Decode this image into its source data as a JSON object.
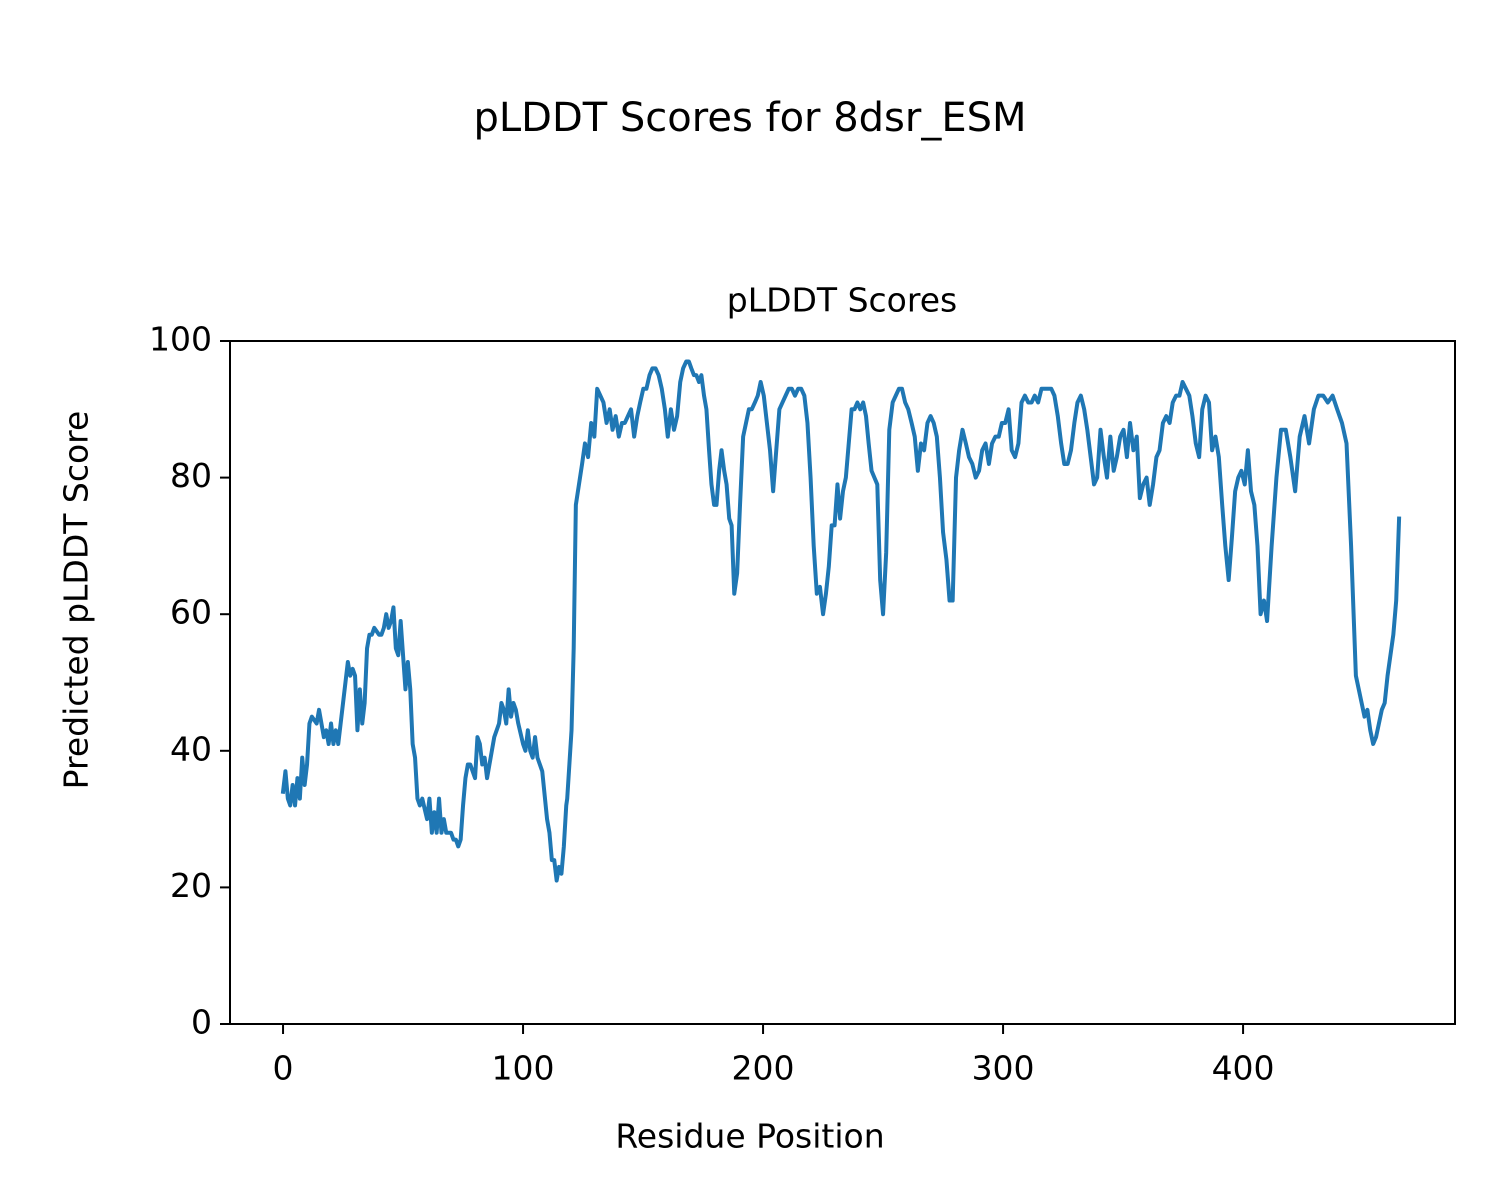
{
  "chart_data": {
    "type": "line",
    "title": "pLDDT Scores for 8dsr_ESM",
    "subtitle": "pLDDT Scores",
    "x_label": "Residue Position",
    "y_label": "Predicted pLDDT Score",
    "color": "#1f77b4",
    "xlim": [
      -22.1,
      488.3
    ],
    "ylim": [
      0,
      100
    ],
    "xticks": [
      0,
      100,
      200,
      300,
      400
    ],
    "yticks": [
      0,
      20,
      40,
      60,
      80,
      100
    ],
    "grid": false,
    "x": [
      0,
      1,
      2,
      3,
      4,
      5,
      6,
      7,
      8,
      9,
      10,
      11,
      12,
      14,
      15,
      16,
      17,
      18,
      19,
      20,
      21,
      22,
      23,
      24,
      25,
      26,
      27,
      28,
      29,
      30,
      31,
      32,
      33,
      34,
      35,
      36,
      37,
      38,
      40,
      41,
      42,
      43,
      44,
      45,
      46,
      47,
      48,
      49,
      50,
      51,
      52,
      53,
      54,
      55,
      56,
      57,
      58,
      60,
      61,
      62,
      63,
      64,
      65,
      66,
      67,
      68,
      70,
      71,
      72,
      73,
      74,
      75,
      76,
      77,
      78,
      80,
      81,
      82,
      83,
      84,
      85,
      86,
      87,
      88,
      90,
      91,
      92,
      93,
      94,
      95,
      96,
      97,
      98,
      100,
      101,
      102,
      103,
      104,
      105,
      106,
      107,
      108,
      110,
      111,
      112,
      113,
      114,
      115,
      116,
      117,
      118,
      118.4,
      119.3,
      120.2,
      121.1,
      122,
      123.3,
      124.6,
      125.8,
      127.1,
      128.4,
      129.7,
      130.9,
      132.2,
      133.5,
      134.8,
      136.1,
      137.3,
      138.6,
      139.9,
      141.2,
      142.4,
      143.7,
      145,
      146.3,
      147.6,
      148.8,
      150.1,
      151.4,
      152.7,
      153.9,
      155.2,
      156.5,
      157.8,
      159.1,
      160.3,
      161.6,
      162.9,
      164.2,
      165.5,
      166.7,
      168,
      169.1,
      170.1,
      171.2,
      172.2,
      173.3,
      174.3,
      175.4,
      176.4,
      177.5,
      178.5,
      179.6,
      180.6,
      181.7,
      182.7,
      183.8,
      184.8,
      185.9,
      186.9,
      188,
      189.2,
      190.4,
      191.7,
      192.9,
      194.1,
      195.3,
      196.6,
      197.8,
      199,
      200.3,
      201.6,
      202.9,
      204.2,
      205.5,
      206.8,
      208.1,
      209.4,
      210.7,
      212,
      213.3,
      214.6,
      215.9,
      217.2,
      218.5,
      219.8,
      221.1,
      222.4,
      223.7,
      225,
      226.2,
      227.4,
      228.6,
      229.8,
      231,
      232.1,
      233.3,
      234.5,
      235.7,
      236.9,
      238.1,
      239.3,
      240.5,
      241.7,
      242.9,
      244,
      245.2,
      246.4,
      247.6,
      248.8,
      250,
      251.3,
      252.6,
      254,
      255.3,
      256.6,
      257.9,
      259.2,
      260.5,
      261.9,
      263.2,
      264.5,
      265.8,
      267.1,
      268.5,
      269.8,
      271.1,
      272.4,
      273.7,
      275,
      276.4,
      277.7,
      279,
      280.4,
      281.7,
      283.1,
      284.5,
      285.8,
      287.2,
      288.6,
      290,
      291.3,
      292.7,
      294.1,
      295.4,
      296.8,
      298.2,
      299.5,
      300.9,
      302.3,
      303.6,
      305,
      306.4,
      307.7,
      309.1,
      310.5,
      311.9,
      313.2,
      314.6,
      316,
      317.3,
      318.7,
      320.1,
      321.4,
      322.8,
      324.2,
      325.5,
      326.9,
      328.3,
      329.7,
      331,
      332.4,
      333.8,
      335.1,
      336.5,
      337.9,
      339.2,
      340.6,
      342,
      343.3,
      344.7,
      346.1,
      347.4,
      348.8,
      350.2,
      351.6,
      352.9,
      354.3,
      355.7,
      357,
      358.4,
      359.8,
      361.1,
      362.5,
      363.9,
      365.2,
      366.6,
      368,
      369.4,
      370.7,
      372.1,
      373.5,
      374.8,
      376.2,
      377.6,
      378.9,
      380.3,
      381.7,
      383,
      384.4,
      385.8,
      387.1,
      388.5,
      389.9,
      391.3,
      392.6,
      394,
      395.3,
      396.7,
      398,
      399.3,
      400.7,
      402,
      403.3,
      404.7,
      406,
      407.3,
      408.7,
      410,
      411.9,
      413.9,
      415.8,
      417.8,
      419.7,
      421.7,
      423.6,
      425.6,
      427.5,
      429.5,
      431.4,
      433.4,
      435.3,
      437.3,
      439.2,
      441.2,
      443.1,
      445,
      447,
      448.2,
      449.4,
      450.6,
      451.8,
      453,
      454.2,
      455.4,
      456.6,
      457.8,
      459,
      460.2,
      461.4,
      462.6,
      463.8,
      465
    ],
    "values": [
      34,
      37,
      33,
      32,
      35,
      32,
      36,
      33,
      39,
      35,
      38,
      44,
      45,
      44,
      46,
      44,
      42,
      43,
      41,
      44,
      41,
      43,
      41,
      44,
      47,
      50,
      53,
      51,
      52,
      51,
      43,
      49,
      44,
      47,
      55,
      57,
      57,
      58,
      57,
      57,
      58,
      60,
      58,
      59,
      61,
      55,
      54,
      59,
      54,
      49,
      53,
      49,
      41,
      39,
      33,
      32,
      33,
      30,
      33,
      28,
      31,
      28,
      33,
      28,
      30,
      28,
      28,
      27,
      27,
      26,
      27,
      32,
      36,
      38,
      38,
      36,
      42,
      41,
      38,
      39,
      36,
      38,
      40,
      42,
      44,
      47,
      46,
      44,
      49,
      45,
      47,
      46,
      44,
      41,
      40,
      43,
      40,
      39,
      42,
      39,
      38,
      37,
      30,
      28,
      24,
      24,
      21,
      23,
      22,
      26,
      32,
      33,
      38,
      43,
      55,
      76,
      79,
      82,
      85,
      83,
      88,
      86,
      93,
      92,
      91,
      88,
      90,
      87,
      89,
      86,
      88,
      88,
      89,
      90,
      86,
      89,
      91,
      93,
      93,
      95,
      96,
      96,
      95,
      93,
      90,
      86,
      90,
      87,
      89,
      94,
      96,
      97,
      97,
      96,
      95,
      95,
      94,
      95,
      92,
      90,
      84,
      79,
      76,
      76,
      81,
      84,
      81,
      79,
      74,
      73,
      63,
      66,
      76,
      86,
      88,
      90,
      90,
      91,
      92,
      94,
      92,
      88,
      84,
      78,
      84,
      90,
      91,
      92,
      93,
      93,
      92,
      93,
      93,
      92,
      88,
      80,
      70,
      63,
      64,
      60,
      63,
      67,
      73,
      73,
      79,
      74,
      78,
      80,
      85,
      90,
      90,
      91,
      90,
      91,
      89,
      85,
      81,
      80,
      79,
      65,
      60,
      69,
      87,
      91,
      92,
      93,
      93,
      91,
      90,
      88,
      86,
      81,
      85,
      84,
      88,
      89,
      88,
      86,
      80,
      72,
      68,
      62,
      62,
      80,
      84,
      87,
      85,
      83,
      82,
      80,
      81,
      84,
      85,
      82,
      85,
      86,
      86,
      88,
      88,
      90,
      84,
      83,
      85,
      91,
      92,
      91,
      91,
      92,
      91,
      93,
      93,
      93,
      93,
      92,
      89,
      85,
      82,
      82,
      84,
      88,
      91,
      92,
      90,
      87,
      83,
      79,
      80,
      87,
      83,
      80,
      86,
      81,
      83,
      86,
      87,
      83,
      88,
      84,
      86,
      77,
      79,
      80,
      76,
      79,
      83,
      84,
      88,
      89,
      88,
      91,
      92,
      92,
      94,
      93,
      92,
      89,
      85,
      83,
      90,
      92,
      91,
      84,
      86,
      83,
      76,
      70,
      65,
      71,
      78,
      80,
      81,
      79,
      84,
      78,
      76,
      70,
      60,
      62,
      59,
      70,
      80,
      87,
      87,
      83,
      78,
      86,
      89,
      85,
      90,
      92,
      92,
      91,
      92,
      90,
      88,
      85,
      70,
      51,
      49,
      47,
      45,
      46,
      43,
      41,
      42,
      44,
      46,
      47,
      51,
      54,
      57,
      62,
      74
    ]
  }
}
